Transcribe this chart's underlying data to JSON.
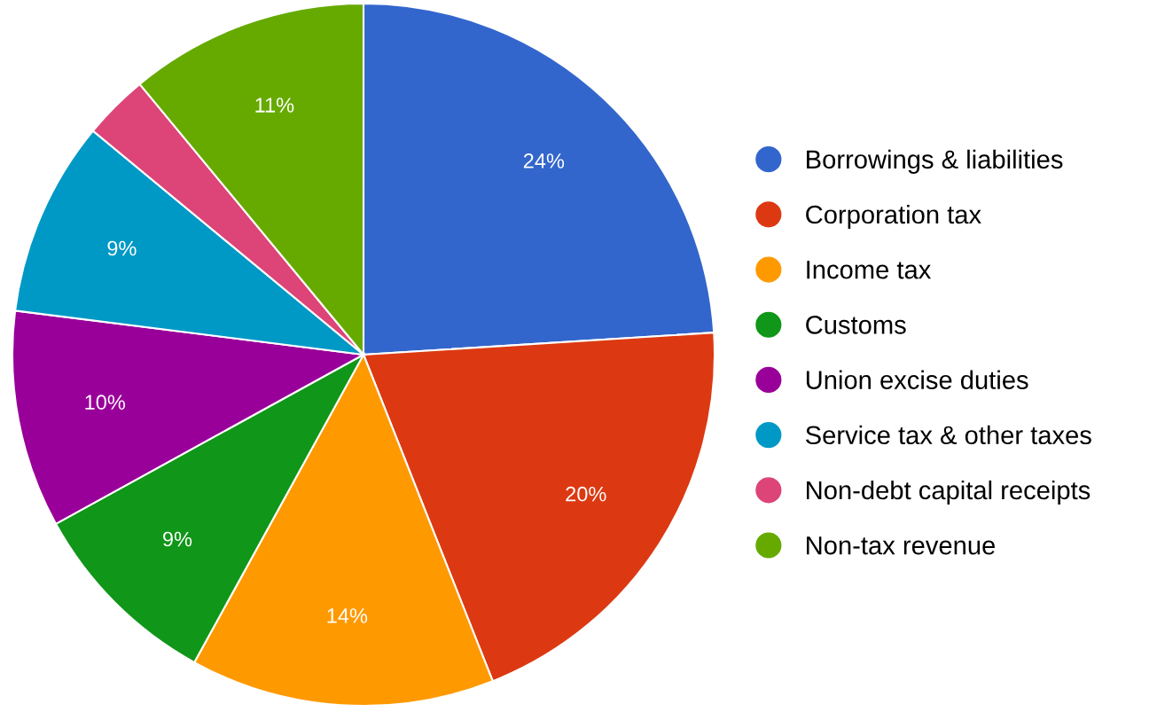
{
  "chart_data": {
    "type": "pie",
    "categories": [
      "Borrowings & liabilities",
      "Corporation tax",
      "Income tax",
      "Customs",
      "Union excise duties",
      "Service tax & other taxes",
      "Non-debt capital receipts",
      "Non-tax revenue"
    ],
    "values": [
      24,
      20,
      14,
      9,
      10,
      9,
      3,
      11
    ],
    "colors": [
      "#3366cc",
      "#dc3912",
      "#ff9900",
      "#109618",
      "#990099",
      "#0099c6",
      "#dd4477",
      "#66aa00"
    ],
    "value_labels": [
      "24%",
      "20%",
      "14%",
      "9%",
      "10%",
      "9%",
      null,
      "11%"
    ],
    "legend": "right"
  }
}
